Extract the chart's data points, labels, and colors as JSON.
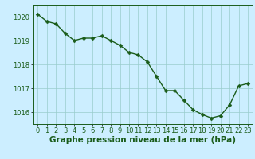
{
  "x": [
    0,
    1,
    2,
    3,
    4,
    5,
    6,
    7,
    8,
    9,
    10,
    11,
    12,
    13,
    14,
    15,
    16,
    17,
    18,
    19,
    20,
    21,
    22,
    23
  ],
  "y": [
    1020.1,
    1019.8,
    1019.7,
    1019.3,
    1019.0,
    1019.1,
    1019.1,
    1019.2,
    1019.0,
    1018.8,
    1018.5,
    1018.4,
    1018.1,
    1017.5,
    1016.9,
    1016.9,
    1016.5,
    1016.1,
    1015.9,
    1015.75,
    1015.85,
    1016.3,
    1017.1,
    1017.2
  ],
  "line_color": "#1a5c1a",
  "marker": "D",
  "marker_size": 2.5,
  "background_color": "#cceeff",
  "grid_color": "#99cccc",
  "xlabel": "Graphe pression niveau de la mer (hPa)",
  "xlabel_fontsize": 7.5,
  "xlabel_color": "#1a5c1a",
  "yticks": [
    1016,
    1017,
    1018,
    1019,
    1020
  ],
  "xticks": [
    0,
    1,
    2,
    3,
    4,
    5,
    6,
    7,
    8,
    9,
    10,
    11,
    12,
    13,
    14,
    15,
    16,
    17,
    18,
    19,
    20,
    21,
    22,
    23
  ],
  "ylim": [
    1015.5,
    1020.5
  ],
  "xlim": [
    -0.5,
    23.5
  ],
  "tick_color": "#1a5c1a",
  "tick_fontsize": 6,
  "line_width": 1.0,
  "border_color": "#1a5c1a"
}
